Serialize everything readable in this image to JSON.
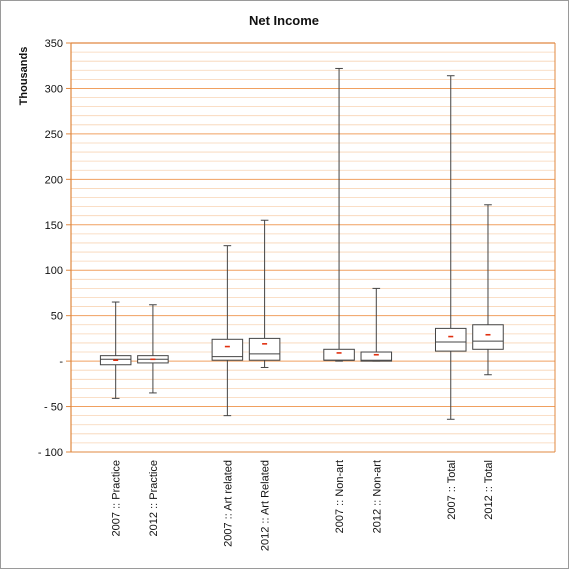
{
  "chart_data": {
    "type": "boxplot",
    "title": "Net Income",
    "ylabel": "Thousands",
    "xlabel": "",
    "ylim": [
      -100,
      350
    ],
    "yticks": [
      {
        "value": 350,
        "label": "350"
      },
      {
        "value": 300,
        "label": "300"
      },
      {
        "value": 250,
        "label": "250"
      },
      {
        "value": 200,
        "label": "200"
      },
      {
        "value": 150,
        "label": "150"
      },
      {
        "value": 100,
        "label": "100"
      },
      {
        "value": 50,
        "label": "50"
      },
      {
        "value": 0,
        "label": "-"
      },
      {
        "value": -50,
        "label": "- 50"
      },
      {
        "value": -100,
        "label": "- 100"
      }
    ],
    "minor_grid_step": 10,
    "grid": true,
    "colors": {
      "major_grid": "#f0a060",
      "minor_grid": "#f8d4b4",
      "axis": "#e08840",
      "box": "#444444",
      "mean": "#e03010"
    },
    "categories": [
      "2007 :: Practice",
      "2012 :: Practice",
      "2007 :: Art related",
      "2012 :: Art Related",
      "2007 :: Non-art",
      "2012 :: Non-art",
      "2007 :: Total",
      "2012 :: Total"
    ],
    "groups": [
      {
        "members": [
          0,
          1
        ]
      },
      {
        "members": [
          2,
          3
        ]
      },
      {
        "members": [
          4,
          5
        ]
      },
      {
        "members": [
          6,
          7
        ]
      }
    ],
    "boxes": [
      {
        "min": -41,
        "q1": -4,
        "median": 2,
        "q3": 6,
        "max": 65,
        "mean": 1
      },
      {
        "min": -35,
        "q1": -2,
        "median": 2,
        "q3": 6,
        "max": 62,
        "mean": 2
      },
      {
        "min": -60,
        "q1": 1,
        "median": 5,
        "q3": 24,
        "max": 127,
        "mean": 16
      },
      {
        "min": -7,
        "q1": 1,
        "median": 8,
        "q3": 25,
        "max": 155,
        "mean": 19
      },
      {
        "min": 0,
        "q1": 1,
        "median": 1,
        "q3": 13,
        "max": 322,
        "mean": 9
      },
      {
        "min": 0,
        "q1": 0,
        "median": 1,
        "q3": 10,
        "max": 80,
        "mean": 7
      },
      {
        "min": -64,
        "q1": 11,
        "median": 21,
        "q3": 36,
        "max": 314,
        "mean": 27
      },
      {
        "min": -15,
        "q1": 13,
        "median": 22,
        "q3": 40,
        "max": 172,
        "mean": 29
      }
    ]
  }
}
